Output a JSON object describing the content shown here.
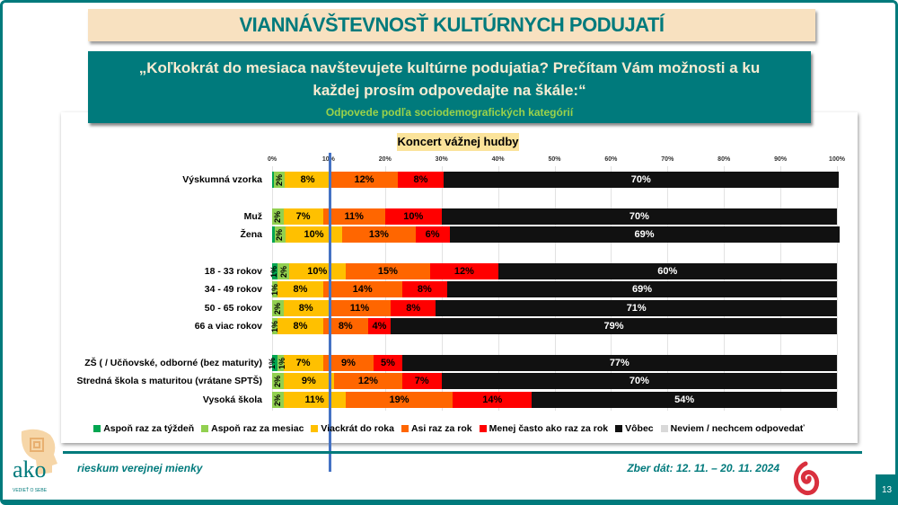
{
  "header": {
    "title": "VIANNÁVŠTEVNOSŤ KULTÚRNYCH PODUJATÍ",
    "question": "„Koľkokrát do mesiaca navštevujete kultúrne podujatia? Prečítam Vám možnosti a ku každej prosím odpovedajte na škále:“",
    "subtitle": "Odpovede podľa sociodemografických kategórií"
  },
  "chart_data": {
    "type": "bar",
    "orientation": "horizontal",
    "stacked": true,
    "title": "Koncert vážnej hudby",
    "xlim": [
      0,
      100
    ],
    "ticks": [
      "0%",
      "10%",
      "20%",
      "30%",
      "40%",
      "50%",
      "60%",
      "70%",
      "80%",
      "90%",
      "100%"
    ],
    "legend_position": "bottom",
    "categories": [
      "Výskumná vzorka",
      "Muž",
      "Žena",
      "18 - 33 rokov",
      "34 - 49 rokov",
      "50 - 65 rokov",
      "66 a viac rokov",
      "ZŠ ( / Učňovské, odborné (bez maturity)",
      "Stredná škola s maturitou (vrátane SPTŠ)",
      "Vysoká škola"
    ],
    "series": [
      {
        "name": "Aspoň raz za týždeň",
        "color": "#00a651",
        "values": [
          0.3,
          0,
          0.4,
          1,
          0,
          0,
          0,
          1,
          0,
          0
        ],
        "labels": [
          "",
          "",
          "",
          "1%",
          "",
          "",
          "",
          "1%",
          "",
          ""
        ]
      },
      {
        "name": "Aspoň raz za mesiac",
        "color": "#92d050",
        "values": [
          2,
          2,
          2,
          2,
          1,
          2,
          1,
          1,
          2,
          2
        ],
        "labels": [
          "2%",
          "2%",
          "2%",
          "2%",
          "1%",
          "2%",
          "1%",
          "1%",
          "2%",
          "2%"
        ]
      },
      {
        "name": "Viackrát do roka",
        "color": "#ffc000",
        "values": [
          8,
          7,
          10,
          10,
          8,
          8,
          8,
          7,
          9,
          11
        ],
        "labels": [
          "8%",
          "7%",
          "10%",
          "10%",
          "8%",
          "8%",
          "8%",
          "7%",
          "9%",
          "11%"
        ]
      },
      {
        "name": "Asi raz za rok",
        "color": "#ff6600",
        "values": [
          12,
          11,
          13,
          15,
          14,
          11,
          8,
          9,
          12,
          19
        ],
        "labels": [
          "12%",
          "11%",
          "13%",
          "15%",
          "14%",
          "11%",
          "8%",
          "9%",
          "12%",
          "19%"
        ]
      },
      {
        "name": "Menej často ako raz za rok",
        "color": "#ff0000",
        "values": [
          8,
          10,
          6,
          12,
          8,
          8,
          4,
          5,
          7,
          14
        ],
        "labels": [
          "8%",
          "10%",
          "6%",
          "12%",
          "8%",
          "8%",
          "4%",
          "5%",
          "7%",
          "14%"
        ]
      },
      {
        "name": "Vôbec",
        "color": "#111111",
        "values": [
          70,
          70,
          69,
          60,
          69,
          71,
          79,
          77,
          70,
          54
        ],
        "labels": [
          "70%",
          "70%",
          "69%",
          "60%",
          "69%",
          "71%",
          "79%",
          "77%",
          "70%",
          "54%"
        ]
      },
      {
        "name": "Neviem / nechcem odpovedať",
        "color": "#d9d9d9",
        "values": [
          0,
          0,
          0,
          0,
          0,
          0,
          0,
          0,
          0,
          0
        ],
        "labels": [
          "",
          "",
          "",
          "",
          "",
          "",
          "",
          "",
          "",
          ""
        ]
      }
    ]
  },
  "footer": {
    "tagline": "rieskum verejnej mienky",
    "date": "Zber dát: 12. 11. – 20. 11. 2024",
    "page": "13",
    "logo": "ako",
    "logo_sub": "VEDIEŤ O SEBE"
  }
}
